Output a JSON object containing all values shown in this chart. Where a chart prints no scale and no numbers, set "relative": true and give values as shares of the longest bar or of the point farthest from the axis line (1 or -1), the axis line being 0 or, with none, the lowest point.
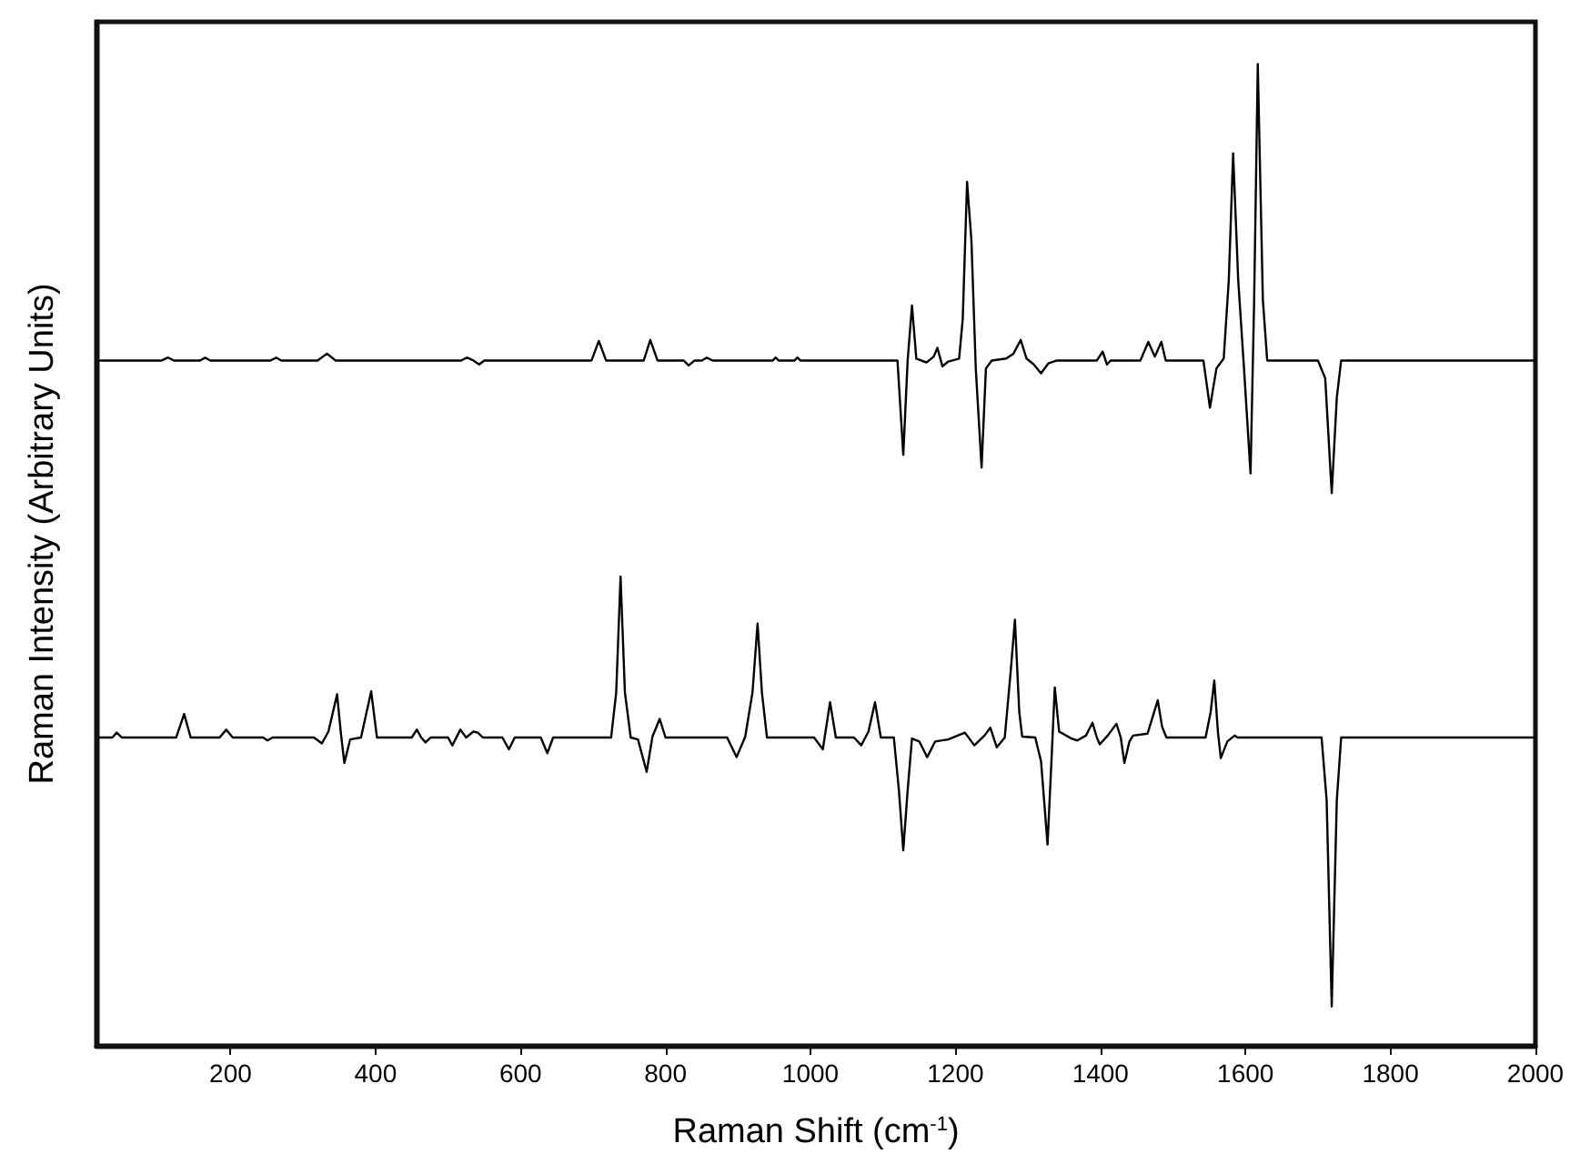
{
  "chart_data": {
    "type": "line",
    "relative": true,
    "xlabel": "Raman Shift (cm$^{-1}$)",
    "ylabel": "Raman Intensity (Arbitrary Units)",
    "xlim": [
      15,
      2000
    ],
    "xticks": [
      200,
      400,
      600,
      800,
      1000,
      1200,
      1400,
      1600,
      1800,
      2000
    ],
    "marker": "none",
    "line_style": "solid",
    "series": [
      {
        "color": "#000000",
        "x": [
          20,
          105,
          114,
          122,
          158,
          165,
          172,
          255,
          263,
          270,
          320,
          333,
          345,
          518,
          526,
          535,
          543,
          550,
          698,
          708,
          718,
          770,
          779,
          789,
          825,
          832,
          840,
          850,
          857,
          865,
          948,
          952,
          956,
          978,
          982,
          986,
          1120,
          1128,
          1134,
          1140,
          1146,
          1160,
          1170,
          1175,
          1182,
          1190,
          1205,
          1210,
          1216,
          1222,
          1228,
          1236,
          1242,
          1250,
          1270,
          1280,
          1290,
          1298,
          1308,
          1318,
          1328,
          1340,
          1395,
          1403,
          1409,
          1414,
          1455,
          1466,
          1475,
          1484,
          1490,
          1542,
          1551,
          1560,
          1570,
          1577,
          1583,
          1590,
          1598,
          1607,
          1612,
          1617,
          1624,
          1630,
          1700,
          1710,
          1719,
          1726,
          1732,
          2000
        ],
        "values": [
          0.698,
          0.698,
          0.701,
          0.698,
          0.698,
          0.701,
          0.698,
          0.698,
          0.701,
          0.698,
          0.698,
          0.705,
          0.698,
          0.698,
          0.701,
          0.698,
          0.694,
          0.698,
          0.698,
          0.718,
          0.698,
          0.698,
          0.719,
          0.698,
          0.698,
          0.693,
          0.698,
          0.698,
          0.701,
          0.698,
          0.698,
          0.701,
          0.698,
          0.698,
          0.701,
          0.698,
          0.698,
          0.602,
          0.698,
          0.754,
          0.7,
          0.696,
          0.702,
          0.711,
          0.692,
          0.697,
          0.7,
          0.74,
          0.88,
          0.82,
          0.69,
          0.589,
          0.69,
          0.698,
          0.7,
          0.705,
          0.719,
          0.7,
          0.694,
          0.685,
          0.695,
          0.698,
          0.698,
          0.707,
          0.694,
          0.698,
          0.698,
          0.717,
          0.702,
          0.717,
          0.698,
          0.698,
          0.65,
          0.69,
          0.7,
          0.78,
          0.909,
          0.78,
          0.69,
          0.583,
          0.76,
          1,
          0.76,
          0.698,
          0.698,
          0.68,
          0.563,
          0.66,
          0.698,
          0.698
        ]
      },
      {
        "color": "#000000",
        "x": [
          20,
          37,
          43,
          50,
          125,
          136,
          145,
          185,
          194,
          203,
          245,
          251,
          258,
          315,
          326,
          335,
          347,
          352,
          357,
          365,
          380,
          394,
          402,
          450,
          457,
          463,
          469,
          476,
          500,
          506,
          517,
          525,
          535,
          541,
          548,
          575,
          584,
          592,
          628,
          637,
          645,
          725,
          732,
          738,
          744,
          752,
          762,
          774,
          782,
          792,
          800,
          885,
          898,
          910,
          920,
          927,
          933,
          940,
          1005,
          1017,
          1027,
          1035,
          1060,
          1070,
          1080,
          1089,
          1097,
          1115,
          1122,
          1128,
          1134,
          1140,
          1150,
          1161,
          1172,
          1190,
          1200,
          1213,
          1226,
          1240,
          1248,
          1257,
          1268,
          1276,
          1282,
          1288,
          1292,
          1310,
          1318,
          1327,
          1333,
          1337,
          1343,
          1360,
          1368,
          1380,
          1389,
          1395,
          1399,
          1410,
          1422,
          1428,
          1433,
          1440,
          1445,
          1465,
          1472,
          1479,
          1485,
          1491,
          1545,
          1552,
          1557,
          1562,
          1566,
          1575,
          1585,
          1589,
          1705,
          1712,
          1719,
          1726,
          1732,
          2000
        ],
        "values": [
          0.314,
          0.314,
          0.319,
          0.314,
          0.314,
          0.338,
          0.314,
          0.314,
          0.322,
          0.314,
          0.314,
          0.311,
          0.314,
          0.314,
          0.308,
          0.32,
          0.358,
          0.32,
          0.288,
          0.312,
          0.314,
          0.361,
          0.314,
          0.314,
          0.322,
          0.314,
          0.309,
          0.314,
          0.314,
          0.306,
          0.322,
          0.314,
          0.32,
          0.319,
          0.314,
          0.314,
          0.302,
          0.314,
          0.314,
          0.298,
          0.314,
          0.314,
          0.36,
          0.478,
          0.36,
          0.314,
          0.312,
          0.279,
          0.315,
          0.333,
          0.314,
          0.314,
          0.294,
          0.315,
          0.36,
          0.43,
          0.36,
          0.314,
          0.314,
          0.302,
          0.35,
          0.314,
          0.314,
          0.306,
          0.32,
          0.35,
          0.314,
          0.314,
          0.26,
          0.199,
          0.26,
          0.313,
          0.31,
          0.294,
          0.31,
          0.312,
          0.315,
          0.319,
          0.306,
          0.316,
          0.324,
          0.304,
          0.314,
          0.38,
          0.434,
          0.34,
          0.315,
          0.314,
          0.29,
          0.205,
          0.3,
          0.365,
          0.32,
          0.313,
          0.311,
          0.316,
          0.329,
          0.314,
          0.307,
          0.316,
          0.328,
          0.314,
          0.288,
          0.31,
          0.316,
          0.318,
          0.335,
          0.352,
          0.325,
          0.314,
          0.314,
          0.34,
          0.372,
          0.32,
          0.293,
          0.31,
          0.316,
          0.314,
          0.314,
          0.25,
          0.04,
          0.25,
          0.314,
          0.314
        ]
      }
    ]
  }
}
